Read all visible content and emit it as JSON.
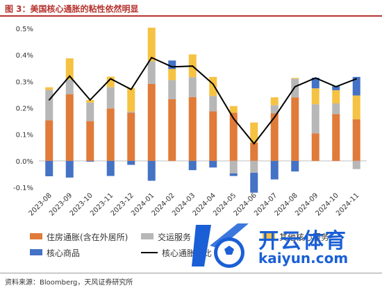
{
  "title": "图 3：美国核心通胀的粘性依然明显",
  "source": "资料来源：Bloomberg，天风证券研究所",
  "watermark": {
    "line1": "开云体育",
    "line2": "kaiyun.com"
  },
  "colors": {
    "housing": "#e07b39",
    "transport": "#b7b7b7",
    "services_other": "#f5c242",
    "goods": "#4472c4",
    "core": "#000000",
    "title": "#b5332e",
    "watermark": "#1a5fd6"
  },
  "chart_data": {
    "type": "bar",
    "stacked": true,
    "categories": [
      "2023-08",
      "2023-09",
      "2023-10",
      "2023-11",
      "2023-12",
      "2024-01",
      "2024-02",
      "2024-03",
      "2024-04",
      "2024-05",
      "2024-06",
      "2024-07",
      "2024-08",
      "2024-09",
      "2024-10",
      "2024-11"
    ],
    "ylim": [
      -0.1,
      0.5
    ],
    "yticks": [
      "-0.1%",
      "0.0%",
      "0.1%",
      "0.2%",
      "0.3%",
      "0.4%",
      "0.5%"
    ],
    "series": [
      {
        "name": "住房通胀(含在外居所)",
        "kind": "bar",
        "color_key": "housing",
        "values": [
          0.153,
          0.252,
          0.15,
          0.198,
          0.182,
          0.291,
          0.233,
          0.241,
          0.187,
          0.182,
          0.068,
          0.18,
          0.24,
          0.104,
          0.177,
          0.157
        ]
      },
      {
        "name": "交运服务",
        "kind": "bar",
        "color_key": "transport",
        "values": [
          0.115,
          0.055,
          0.07,
          0.08,
          0.004,
          0.085,
          0.072,
          0.075,
          0.058,
          -0.047,
          -0.045,
          0.03,
          0.07,
          0.11,
          0.04,
          -0.031
        ]
      },
      {
        "name": "其他核心服务",
        "kind": "bar",
        "color_key": "services_other",
        "values": [
          0.01,
          0.08,
          0.01,
          0.04,
          0.09,
          0.127,
          0.042,
          0.086,
          0.072,
          0.025,
          0.077,
          0.03,
          0.003,
          0.06,
          0.05,
          0.09
        ]
      },
      {
        "name": "核心商品",
        "kind": "bar",
        "color_key": "goods",
        "values": [
          -0.058,
          -0.063,
          -0.003,
          -0.057,
          -0.015,
          -0.075,
          0.032,
          -0.035,
          -0.025,
          -0.01,
          -0.075,
          -0.07,
          -0.04,
          0.04,
          0.015,
          0.07
        ]
      },
      {
        "name": "核心通胀环比",
        "kind": "line",
        "color_key": "core",
        "values": [
          0.23,
          0.32,
          0.23,
          0.31,
          0.27,
          0.39,
          0.355,
          0.358,
          0.29,
          0.16,
          0.065,
          0.165,
          0.28,
          0.313,
          0.28,
          0.31
        ]
      }
    ],
    "legend_labels": [
      "住房通胀(含在外居所)",
      "交运服务",
      "其他核心服务",
      "核心商品",
      "核心通胀环比"
    ],
    "legend_position": "bottom",
    "grid": false
  }
}
